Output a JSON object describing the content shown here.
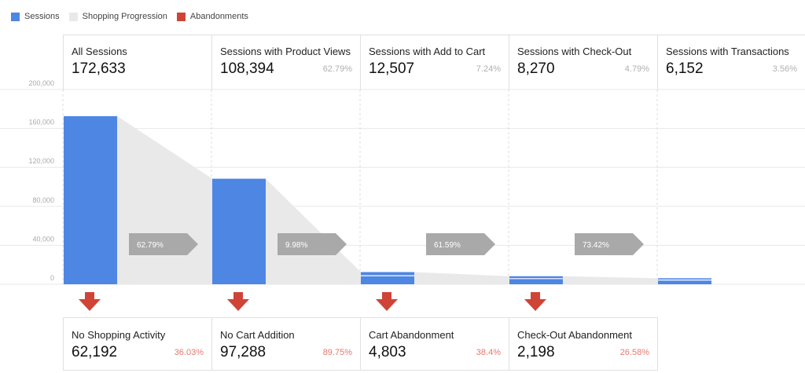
{
  "legend": {
    "sessions": "Sessions",
    "progression": "Shopping Progression",
    "abandonments": "Abandonments"
  },
  "colors": {
    "sessions": "#4e86e4",
    "progression": "#e9e9e9",
    "abandonments": "#cf4437",
    "conversion_arrow": "#a9a9a9",
    "abandon_pct": "#e8786c"
  },
  "stages": [
    {
      "label": "All Sessions",
      "value": "172,633",
      "pct": ""
    },
    {
      "label": "Sessions with Product Views",
      "value": "108,394",
      "pct": "62.79%"
    },
    {
      "label": "Sessions with Add to Cart",
      "value": "12,507",
      "pct": "7.24%"
    },
    {
      "label": "Sessions with Check-Out",
      "value": "8,270",
      "pct": "4.79%"
    },
    {
      "label": "Sessions with Transactions",
      "value": "6,152",
      "pct": "3.56%"
    }
  ],
  "abandonments": [
    {
      "label": "No Shopping Activity",
      "value": "62,192",
      "pct": "36.03%"
    },
    {
      "label": "No Cart Addition",
      "value": "97,288",
      "pct": "89.75%"
    },
    {
      "label": "Cart Abandonment",
      "value": "4,803",
      "pct": "38.4%"
    },
    {
      "label": "Check-Out Abandonment",
      "value": "2,198",
      "pct": "26.58%"
    }
  ],
  "chart_data": {
    "type": "bar",
    "categories": [
      "All Sessions",
      "Sessions with Product Views",
      "Sessions with Add to Cart",
      "Sessions with Check-Out",
      "Sessions with Transactions"
    ],
    "series": [
      {
        "name": "Sessions",
        "values": [
          172633,
          108394,
          12507,
          8270,
          6152
        ]
      }
    ],
    "conversion_rates": [
      "62.79%",
      "9.98%",
      "61.59%",
      "73.42%"
    ],
    "yticks": [
      "200,000",
      "160,000",
      "120,000",
      "80,000",
      "40,000",
      "0"
    ],
    "ylim": [
      0,
      200000
    ],
    "grid": true,
    "legend": "top-left"
  }
}
